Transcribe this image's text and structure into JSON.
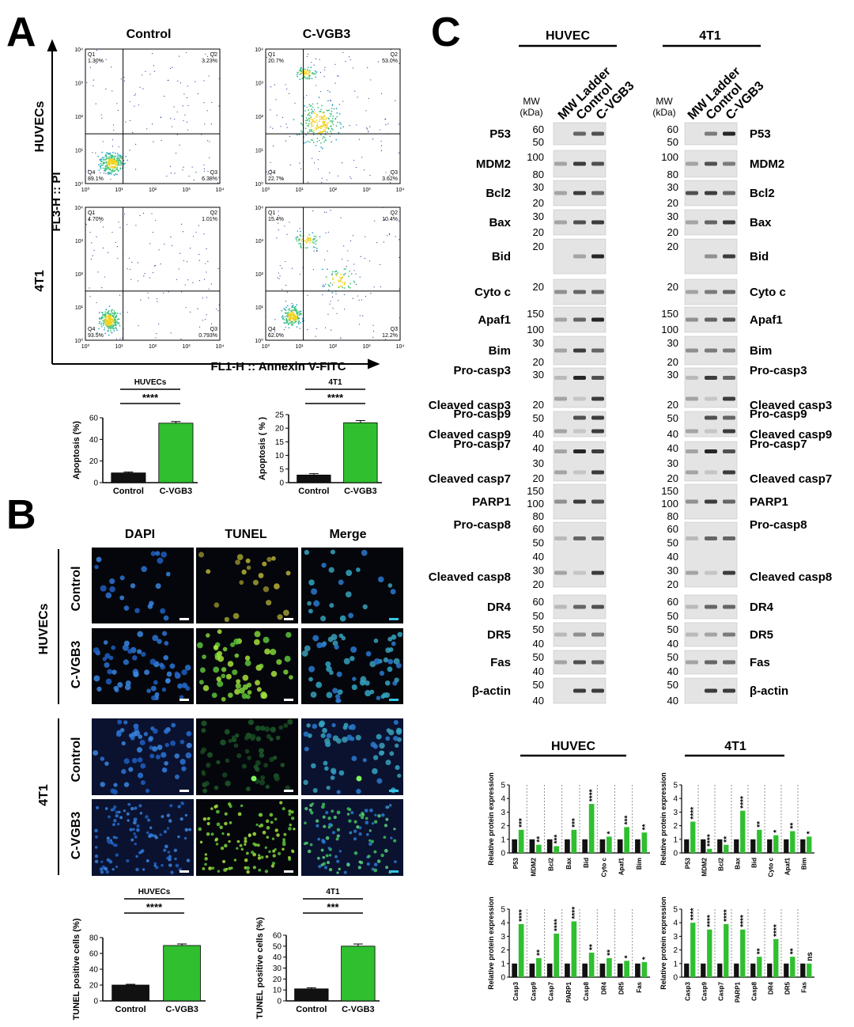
{
  "panel_letters": {
    "a": "A",
    "b": "B",
    "c": "C"
  },
  "panelA": {
    "col_titles": [
      "Control",
      "C-VGB3"
    ],
    "row_labels": [
      "HUVECs",
      "4T1"
    ],
    "y_axis_label": "FL3-H :: PI",
    "x_axis_label": "FL1-H :: Annexin V-FITC",
    "axis_ticks": [
      "10⁰",
      "10¹",
      "10²",
      "10³",
      "10⁴"
    ],
    "plots": [
      {
        "q1": "Q1",
        "q1v": "1.30%",
        "q2": "Q2",
        "q2v": "3.23%",
        "q3": "Q3",
        "q3v": "6.38%",
        "q4": "Q4",
        "q4v": "89.1%"
      },
      {
        "q1": "Q1",
        "q1v": "20.7%",
        "q2": "Q2",
        "q2v": "53.0%",
        "q3": "Q3",
        "q3v": "3.62%",
        "q4": "Q4",
        "q4v": "22.7%"
      },
      {
        "q1": "Q1",
        "q1v": "4.70%",
        "q2": "Q2",
        "q2v": "1.01%",
        "q3": "Q3",
        "q3v": "0.793%",
        "q4": "Q4",
        "q4v": "93.5%"
      },
      {
        "q1": "Q1",
        "q1v": "15.4%",
        "q2": "Q2",
        "q2v": "10.4%",
        "q3": "Q3",
        "q3v": "12.2%",
        "q4": "Q4",
        "q4v": "62.0%"
      }
    ]
  },
  "colors": {
    "control": "#111111",
    "treated": "#2fbf2f",
    "sig": "#000000"
  },
  "panelB": {
    "col_titles": [
      "DAPI",
      "TUNEL",
      "Merge"
    ],
    "group_labels": [
      "HUVECs",
      "4T1"
    ],
    "row_labels": [
      "Control",
      "C-VGB3",
      "Control",
      "C-VGB3"
    ]
  },
  "panelC": {
    "headers": [
      "HUVEC",
      "4T1"
    ],
    "lane_labels": [
      "MW Ladder",
      "Control",
      "C-VGB3"
    ],
    "mw_label_1": "MW",
    "mw_label_2": "(kDa)",
    "blots": [
      {
        "left": "P53",
        "right": "P53",
        "mw": [
          "60",
          "50"
        ]
      },
      {
        "left": "MDM2",
        "right": "MDM2",
        "mw": [
          "100",
          "80"
        ]
      },
      {
        "left": "Bcl2",
        "right": "Bcl2",
        "mw": [
          "30",
          "20"
        ]
      },
      {
        "left": "Bax",
        "right": "Bax",
        "mw": [
          "30",
          "20"
        ]
      },
      {
        "left": "Bid",
        "right": "Bid",
        "mw": [
          "20"
        ]
      },
      {
        "left": "Cyto c",
        "right": "Cyto c",
        "mw": [
          "20"
        ]
      },
      {
        "left": "Apaf1",
        "right": "Apaf1",
        "mw": [
          "150",
          "100"
        ]
      },
      {
        "left": "Bim",
        "right": "Bim",
        "mw": [
          "30",
          "20"
        ]
      },
      {
        "left": "Pro-casp3",
        "right": "Pro-casp3",
        "left2": "Cleaved casp3",
        "right2": "Cleaved casp3",
        "mw": [
          "30",
          "20"
        ]
      },
      {
        "left": "Pro-casp9",
        "right": "Pro-casp9",
        "left2": "Cleaved casp9",
        "right2": "Cleaved casp9",
        "mw": [
          "50",
          "40"
        ]
      },
      {
        "left": "Pro-casp7",
        "right": "Pro-casp7",
        "left2": "Cleaved casp7",
        "right2": "Cleaved casp7",
        "mw": [
          "40",
          "30",
          "20"
        ]
      },
      {
        "left": "PARP1",
        "right": "PARP1",
        "mw": [
          "150",
          "100",
          "80"
        ]
      },
      {
        "left": "Pro-casp8",
        "right": "Pro-casp8",
        "left2": "Cleaved casp8",
        "right2": "Cleaved casp8",
        "mw": [
          "60",
          "50",
          "40",
          "30",
          "20"
        ]
      },
      {
        "left": "DR4",
        "right": "DR4",
        "mw": [
          "60",
          "50"
        ]
      },
      {
        "left": "DR5",
        "right": "DR5",
        "mw": [
          "50",
          "40"
        ]
      },
      {
        "left": "Fas",
        "right": "Fas",
        "mw": [
          "50",
          "40"
        ]
      },
      {
        "left": "β-actin",
        "right": "β-actin",
        "mw": [
          "50",
          "40"
        ]
      }
    ]
  },
  "chart_data": [
    {
      "type": "bar",
      "xlabel": "HUVECs",
      "ylabel": "Apoptosis (%)",
      "categories": [
        "Control",
        "C-VGB3"
      ],
      "values": [
        9,
        55
      ],
      "errors": [
        0.8,
        1.5
      ],
      "ylim": [
        0,
        60
      ],
      "yticks": [
        0,
        20,
        40,
        60
      ],
      "significance": "****"
    },
    {
      "type": "bar",
      "xlabel": "4T1",
      "ylabel": "Apoptosis ( % )",
      "categories": [
        "Control",
        "C-VGB3"
      ],
      "values": [
        2.8,
        22
      ],
      "errors": [
        0.5,
        0.8
      ],
      "ylim": [
        0,
        25
      ],
      "yticks": [
        0,
        5,
        10,
        15,
        20,
        25
      ],
      "significance": "****"
    },
    {
      "type": "bar",
      "xlabel": "HUVECs",
      "ylabel": "TUNEL positive cells (%)",
      "categories": [
        "Control",
        "C-VGB3"
      ],
      "values": [
        20,
        70
      ],
      "errors": [
        1,
        2
      ],
      "ylim": [
        0,
        80
      ],
      "yticks": [
        0,
        20,
        40,
        60,
        80
      ],
      "significance": "****"
    },
    {
      "type": "bar",
      "xlabel": "4T1",
      "ylabel": "TUNEL positive cells (%)",
      "categories": [
        "Control",
        "C-VGB3"
      ],
      "values": [
        11,
        50
      ],
      "errors": [
        1,
        2
      ],
      "ylim": [
        0,
        60
      ],
      "yticks": [
        0,
        10,
        20,
        30,
        40,
        50,
        60
      ],
      "significance": "***"
    },
    {
      "type": "bar",
      "title": "HUVEC",
      "ylabel": "Relative protein expression",
      "ylim": [
        0,
        5
      ],
      "yticks": [
        0,
        1,
        2,
        3,
        4,
        5
      ],
      "categories": [
        "P53",
        "MDM2",
        "Bcl2",
        "Bax",
        "Bid",
        "Cyto c",
        "Apaf1",
        "Bim"
      ],
      "series": [
        {
          "values": [
            1,
            1,
            1,
            1,
            1,
            1,
            1,
            1
          ]
        },
        {
          "values": [
            1.7,
            0.6,
            0.5,
            1.7,
            3.6,
            1.2,
            1.9,
            1.5
          ]
        }
      ],
      "significance": [
        "***",
        "**",
        "***",
        "***",
        "****",
        "*",
        "***",
        "**"
      ]
    },
    {
      "type": "bar",
      "title": "4T1",
      "ylabel": "Relative protein expression",
      "ylim": [
        0,
        5
      ],
      "yticks": [
        0,
        1,
        2,
        3,
        4,
        5
      ],
      "categories": [
        "P53",
        "MDM2",
        "Bcl2",
        "Bax",
        "Bid",
        "Cyto c",
        "Apaf1",
        "Bim"
      ],
      "series": [
        {
          "values": [
            1,
            1,
            1,
            1,
            1,
            1,
            1,
            1
          ]
        },
        {
          "values": [
            2.3,
            0.3,
            0.6,
            3.1,
            1.7,
            1.3,
            1.6,
            1.2
          ]
        }
      ],
      "significance": [
        "****",
        "****",
        "**",
        "****",
        "**",
        "*",
        "**",
        "*"
      ]
    },
    {
      "type": "bar",
      "ylabel": "Relative protein expression",
      "ylim": [
        0,
        5
      ],
      "yticks": [
        0,
        1,
        2,
        3,
        4,
        5
      ],
      "categories": [
        "Casp3",
        "Casp9",
        "Casp7",
        "PARP1",
        "Casp8",
        "DR4",
        "DR5",
        "Fas"
      ],
      "series": [
        {
          "values": [
            1,
            1,
            1,
            1,
            1,
            1,
            1,
            1
          ]
        },
        {
          "values": [
            3.9,
            1.4,
            3.2,
            4.1,
            1.8,
            1.4,
            1.2,
            1.1
          ]
        }
      ],
      "significance": [
        "****",
        "**",
        "****",
        "****",
        "**",
        "**",
        "*",
        "*"
      ]
    },
    {
      "type": "bar",
      "ylabel": "Relative protein expression",
      "ylim": [
        0,
        5
      ],
      "yticks": [
        0,
        1,
        2,
        3,
        4,
        5
      ],
      "categories": [
        "Casp3",
        "Casp9",
        "Casp7",
        "PARP1",
        "Casp8",
        "DR4",
        "DR5",
        "Fas"
      ],
      "series": [
        {
          "values": [
            1,
            1,
            1,
            1,
            1,
            1,
            1,
            1
          ]
        },
        {
          "values": [
            4.0,
            3.5,
            3.9,
            3.5,
            1.5,
            2.8,
            1.5,
            1.0
          ]
        }
      ],
      "significance": [
        "****",
        "****",
        "****",
        "****",
        "**",
        "****",
        "**",
        "ns"
      ]
    }
  ]
}
